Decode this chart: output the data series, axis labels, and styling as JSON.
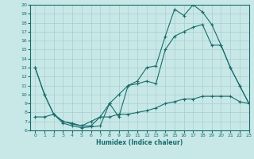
{
  "xlabel": "Humidex (Indice chaleur)",
  "bg_color": "#c8e8e8",
  "grid_color": "#a8cece",
  "line_color": "#1a6b6b",
  "xlim": [
    -0.5,
    23
  ],
  "ylim": [
    6,
    20
  ],
  "xticks": [
    0,
    1,
    2,
    3,
    4,
    5,
    6,
    7,
    8,
    9,
    10,
    11,
    12,
    13,
    14,
    15,
    16,
    17,
    18,
    19,
    20,
    21,
    22,
    23
  ],
  "yticks": [
    6,
    7,
    8,
    9,
    10,
    11,
    12,
    13,
    14,
    15,
    16,
    17,
    18,
    19,
    20
  ],
  "line1_x": [
    0,
    1,
    2,
    3,
    4,
    5,
    6,
    7,
    8,
    9,
    10,
    11,
    12,
    13,
    14,
    15,
    16,
    17,
    18,
    19,
    20,
    21,
    22,
    23
  ],
  "line1_y": [
    13,
    10,
    7.8,
    6.8,
    6.5,
    6.3,
    6.4,
    6.5,
    9.0,
    7.5,
    11.0,
    11.5,
    13.0,
    13.2,
    16.5,
    19.5,
    18.8,
    20.0,
    19.2,
    17.8,
    15.5,
    13.0,
    11.0,
    9.0
  ],
  "line2_x": [
    0,
    1,
    2,
    3,
    4,
    5,
    6,
    7,
    8,
    9,
    10,
    11,
    12,
    13,
    14,
    15,
    16,
    17,
    18,
    19,
    20,
    21,
    22,
    23
  ],
  "line2_y": [
    13,
    10,
    7.8,
    7.0,
    6.7,
    6.5,
    7.0,
    7.5,
    9.0,
    10.0,
    11.0,
    11.2,
    11.5,
    11.2,
    15.0,
    16.5,
    17.0,
    17.5,
    17.8,
    15.5,
    15.5,
    13.0,
    11.0,
    9.0
  ],
  "line3_x": [
    0,
    1,
    2,
    3,
    4,
    5,
    6,
    7,
    8,
    9,
    10,
    11,
    12,
    13,
    14,
    15,
    16,
    17,
    18,
    19,
    20,
    21,
    22,
    23
  ],
  "line3_y": [
    7.5,
    7.5,
    7.8,
    7.0,
    6.8,
    6.5,
    6.5,
    7.5,
    7.5,
    7.8,
    7.8,
    8.0,
    8.2,
    8.5,
    9.0,
    9.2,
    9.5,
    9.5,
    9.8,
    9.8,
    9.8,
    9.8,
    9.2,
    9.0
  ]
}
